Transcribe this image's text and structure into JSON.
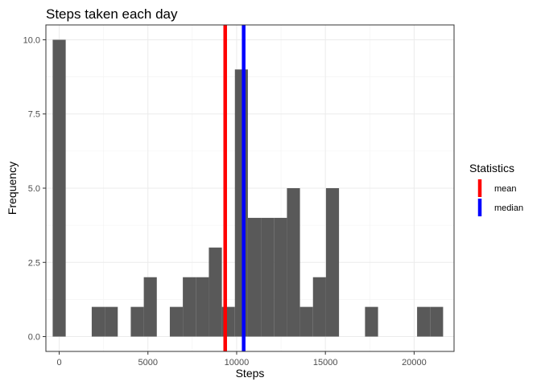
{
  "chart_data": {
    "type": "bar",
    "title": "Steps taken each day",
    "xlabel": "Steps",
    "ylabel": "Frequency",
    "xlim": [
      -750,
      22250
    ],
    "ylim": [
      -0.5,
      10.5
    ],
    "x_ticks": [
      0,
      5000,
      10000,
      15000,
      20000
    ],
    "x_tick_labels": [
      "0",
      "5000",
      "10000",
      "15000",
      "20000"
    ],
    "y_ticks": [
      0,
      2.5,
      5,
      7.5,
      10
    ],
    "y_tick_labels": [
      "0.0",
      "2.5",
      "5.0",
      "7.5",
      "10.0"
    ],
    "grid": true,
    "bar_color": "#595959",
    "bins": [
      {
        "start": -367,
        "end": 367,
        "count": 10
      },
      {
        "start": 1833,
        "end": 2567,
        "count": 1
      },
      {
        "start": 2567,
        "end": 3300,
        "count": 1
      },
      {
        "start": 3300,
        "end": 4033,
        "count": 0
      },
      {
        "start": 4033,
        "end": 4767,
        "count": 1
      },
      {
        "start": 4767,
        "end": 5500,
        "count": 2
      },
      {
        "start": 5500,
        "end": 6233,
        "count": 0
      },
      {
        "start": 6233,
        "end": 6967,
        "count": 1
      },
      {
        "start": 6967,
        "end": 7700,
        "count": 2
      },
      {
        "start": 7700,
        "end": 8433,
        "count": 2
      },
      {
        "start": 8433,
        "end": 9167,
        "count": 3
      },
      {
        "start": 9167,
        "end": 9900,
        "count": 1
      },
      {
        "start": 9900,
        "end": 10633,
        "count": 9
      },
      {
        "start": 10633,
        "end": 11367,
        "count": 4
      },
      {
        "start": 11367,
        "end": 12100,
        "count": 4
      },
      {
        "start": 12100,
        "end": 12833,
        "count": 4
      },
      {
        "start": 12833,
        "end": 13567,
        "count": 5
      },
      {
        "start": 13567,
        "end": 14300,
        "count": 1
      },
      {
        "start": 14300,
        "end": 15033,
        "count": 2
      },
      {
        "start": 15033,
        "end": 15767,
        "count": 5
      },
      {
        "start": 17233,
        "end": 17967,
        "count": 1
      },
      {
        "start": 20167,
        "end": 20900,
        "count": 1
      },
      {
        "start": 20900,
        "end": 21633,
        "count": 1
      }
    ],
    "vlines": [
      {
        "name": "mean",
        "x": 9354,
        "color": "#ff0000"
      },
      {
        "name": "median",
        "x": 10395,
        "color": "#0000ff"
      }
    ],
    "legend": {
      "title": "Statistics",
      "position": "right",
      "entries": [
        {
          "label": "mean",
          "color": "#ff0000"
        },
        {
          "label": "median",
          "color": "#0000ff"
        }
      ]
    }
  }
}
